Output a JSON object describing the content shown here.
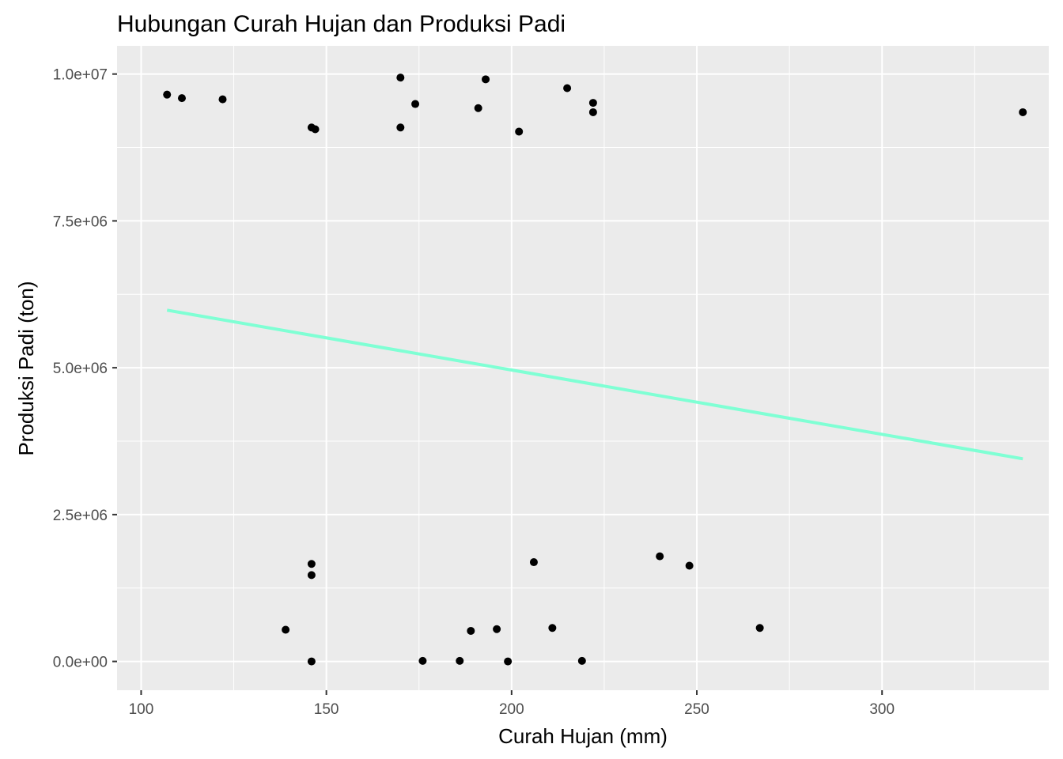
{
  "chart_data": {
    "type": "scatter",
    "title": "Hubungan Curah Hujan dan Produksi Padi",
    "xlabel": "Curah Hujan (mm)",
    "ylabel": "Produksi Padi (ton)",
    "xlim": [
      93.5,
      345
    ],
    "ylim": [
      -490000,
      10480000
    ],
    "x_ticks": [
      100,
      150,
      200,
      250,
      300
    ],
    "x_tick_labels": [
      "100",
      "150",
      "200",
      "250",
      "300"
    ],
    "y_ticks": [
      0,
      2500000,
      5000000,
      7500000,
      10000000
    ],
    "y_tick_labels": [
      "0.0e+00",
      "2.5e+06",
      "5.0e+06",
      "7.5e+06",
      "1.0e+07"
    ],
    "grid": true,
    "panel_background": "#ebebeb",
    "point_color": "#000000",
    "trend_line_color": "#7fffd4",
    "points": [
      {
        "x": 107,
        "y": 9650000
      },
      {
        "x": 111,
        "y": 9590000
      },
      {
        "x": 122,
        "y": 9570000
      },
      {
        "x": 146,
        "y": 9090000
      },
      {
        "x": 147,
        "y": 9060000
      },
      {
        "x": 170,
        "y": 9940000
      },
      {
        "x": 170,
        "y": 9090000
      },
      {
        "x": 174,
        "y": 9490000
      },
      {
        "x": 191,
        "y": 9420000
      },
      {
        "x": 193,
        "y": 9910000
      },
      {
        "x": 202,
        "y": 9020000
      },
      {
        "x": 215,
        "y": 9760000
      },
      {
        "x": 222,
        "y": 9510000
      },
      {
        "x": 222,
        "y": 9350000
      },
      {
        "x": 338,
        "y": 9350000
      },
      {
        "x": 146,
        "y": 1660000
      },
      {
        "x": 146,
        "y": 1470000
      },
      {
        "x": 139,
        "y": 540000
      },
      {
        "x": 146,
        "y": 0
      },
      {
        "x": 176,
        "y": 10000
      },
      {
        "x": 186,
        "y": 10000
      },
      {
        "x": 189,
        "y": 520000
      },
      {
        "x": 196,
        "y": 550000
      },
      {
        "x": 199,
        "y": 0
      },
      {
        "x": 206,
        "y": 1690000
      },
      {
        "x": 211,
        "y": 570000
      },
      {
        "x": 219,
        "y": 10000
      },
      {
        "x": 240,
        "y": 1790000
      },
      {
        "x": 248,
        "y": 1630000
      },
      {
        "x": 267,
        "y": 570000
      }
    ],
    "trend_line": {
      "x": [
        107,
        338
      ],
      "y": [
        5980000,
        3450000
      ]
    }
  }
}
